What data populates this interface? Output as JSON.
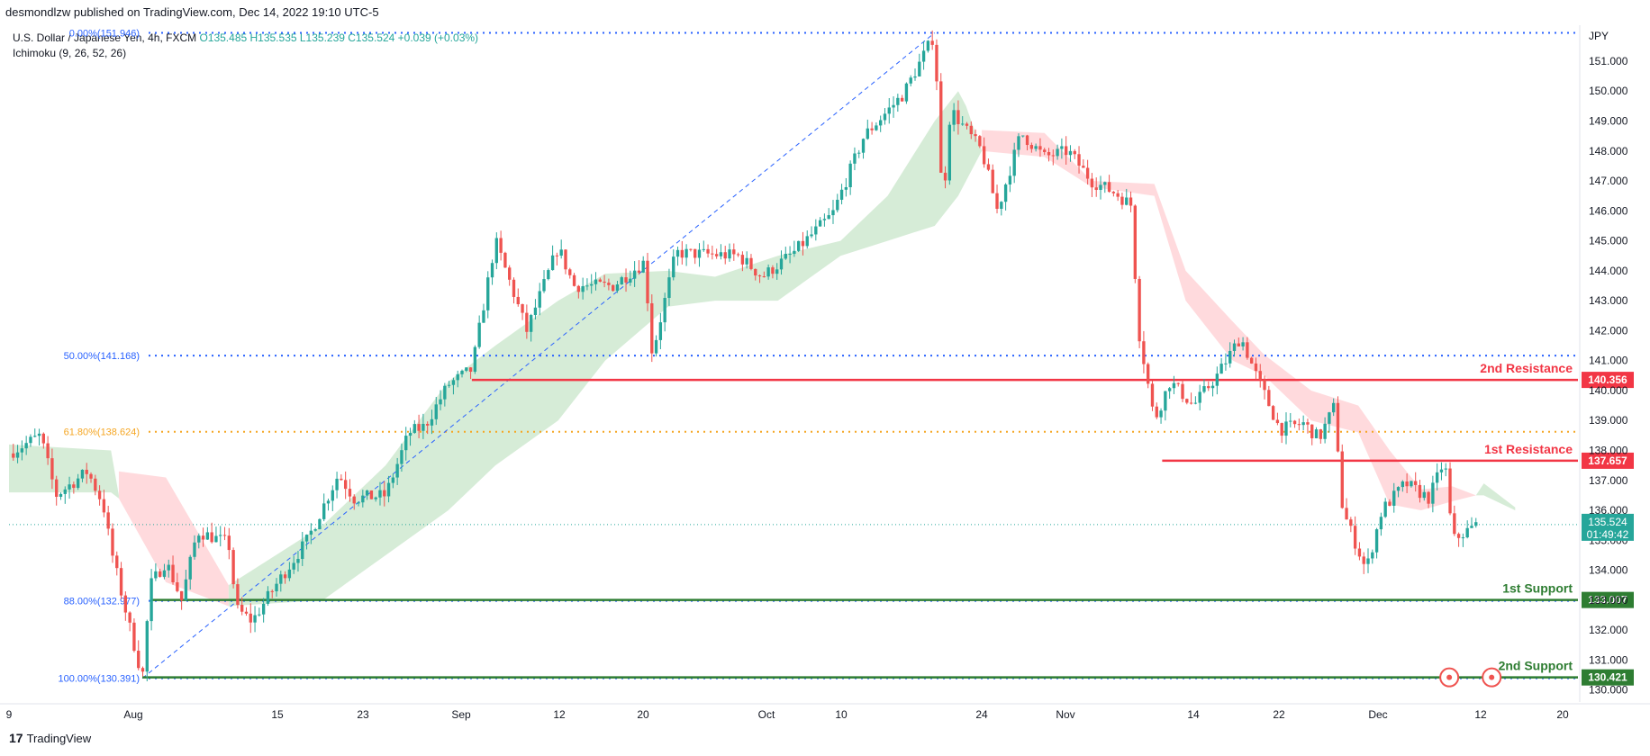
{
  "header": {
    "publish_line": "desmondlzw published on TradingView.com, Dec 14, 2022 19:10 UTC-5"
  },
  "legend": {
    "symbol": "U.S. Dollar / Japanese Yen, 4h, FXCM",
    "ohlc": "O135.485 H135.535 L135.239 C135.524 +0.039 (+0.03%)",
    "indicator": "Ichimoku (9, 26, 52, 26)"
  },
  "footer": {
    "brand": "TradingView",
    "logo_glyph": "17"
  },
  "colors": {
    "up": "#26a69a",
    "down": "#ef5350",
    "resistance": "#f23645",
    "support": "#2e7d32",
    "fib_blue": "#2962ff",
    "fib_orange": "#f5a623",
    "cloud_green": "#c8e6c9",
    "cloud_red": "#ffcdd2"
  },
  "chart_data": {
    "type": "candlestick",
    "instrument": "USDJPY",
    "currency_label": "JPY",
    "timeframe": "4h",
    "ylim": [
      129.6,
      152.2
    ],
    "y_ticks": [
      "151.000",
      "150.000",
      "149.000",
      "148.000",
      "147.000",
      "146.000",
      "145.000",
      "144.000",
      "143.000",
      "142.000",
      "141.000",
      "140.000",
      "139.000",
      "138.000",
      "137.000",
      "136.000",
      "135.000",
      "134.000",
      "133.000",
      "132.000",
      "131.000",
      "130.000"
    ],
    "x_ticks": [
      "9",
      "Aug",
      "15",
      "23",
      "Sep",
      "12",
      "20",
      "Oct",
      "10",
      "24",
      "Nov",
      "14",
      "22",
      "Dec",
      "12",
      "20"
    ],
    "price_path": [
      [
        0,
        137.9
      ],
      [
        0.02,
        138.5
      ],
      [
        0.03,
        136.5
      ],
      [
        0.05,
        137.3
      ],
      [
        0.06,
        136.2
      ],
      [
        0.065,
        134.7
      ],
      [
        0.075,
        132.5
      ],
      [
        0.085,
        130.4
      ],
      [
        0.09,
        133.5
      ],
      [
        0.1,
        134.3
      ],
      [
        0.11,
        133.0
      ],
      [
        0.12,
        135.3
      ],
      [
        0.14,
        134.9
      ],
      [
        0.145,
        132.7
      ],
      [
        0.155,
        132.3
      ],
      [
        0.17,
        133.5
      ],
      [
        0.19,
        135.0
      ],
      [
        0.21,
        137.2
      ],
      [
        0.22,
        136.4
      ],
      [
        0.24,
        136.5
      ],
      [
        0.255,
        138.6
      ],
      [
        0.265,
        138.8
      ],
      [
        0.28,
        140.2
      ],
      [
        0.295,
        140.7
      ],
      [
        0.31,
        145.0
      ],
      [
        0.33,
        142.0
      ],
      [
        0.35,
        144.8
      ],
      [
        0.36,
        143.5
      ],
      [
        0.385,
        143.5
      ],
      [
        0.405,
        144.3
      ],
      [
        0.41,
        141.2
      ],
      [
        0.425,
        144.6
      ],
      [
        0.465,
        144.5
      ],
      [
        0.48,
        143.8
      ],
      [
        0.5,
        144.6
      ],
      [
        0.525,
        145.9
      ],
      [
        0.545,
        148.5
      ],
      [
        0.57,
        149.9
      ],
      [
        0.59,
        151.9
      ],
      [
        0.595,
        146.0
      ],
      [
        0.6,
        149.4
      ],
      [
        0.62,
        148.0
      ],
      [
        0.63,
        146.0
      ],
      [
        0.645,
        148.6
      ],
      [
        0.66,
        147.8
      ],
      [
        0.675,
        148.0
      ],
      [
        0.69,
        147.0
      ],
      [
        0.705,
        146.6
      ],
      [
        0.715,
        146.2
      ],
      [
        0.72,
        142.0
      ],
      [
        0.73,
        139.0
      ],
      [
        0.74,
        140.3
      ],
      [
        0.755,
        139.5
      ],
      [
        0.77,
        140.5
      ],
      [
        0.785,
        141.8
      ],
      [
        0.795,
        140.5
      ],
      [
        0.81,
        138.7
      ],
      [
        0.825,
        138.9
      ],
      [
        0.835,
        138.4
      ],
      [
        0.845,
        139.5
      ],
      [
        0.85,
        136.0
      ],
      [
        0.865,
        134.0
      ],
      [
        0.875,
        136.0
      ],
      [
        0.89,
        136.9
      ],
      [
        0.905,
        136.4
      ],
      [
        0.915,
        137.7
      ],
      [
        0.92,
        135.0
      ],
      [
        0.935,
        135.5
      ]
    ],
    "ichimoku": {
      "cloud_segments": [
        {
          "color": "green",
          "upper": [
            [
              0,
              138.2
            ],
            [
              0.065,
              138.0
            ],
            [
              0.07,
              136.5
            ]
          ],
          "lower": [
            [
              0,
              136.6
            ],
            [
              0.065,
              136.6
            ],
            [
              0.07,
              136.4
            ]
          ]
        },
        {
          "color": "red",
          "upper": [
            [
              0.07,
              137.3
            ],
            [
              0.1,
              137.1
            ],
            [
              0.14,
              133.5
            ]
          ],
          "lower": [
            [
              0.07,
              136.4
            ],
            [
              0.1,
              133.6
            ],
            [
              0.14,
              132.8
            ]
          ]
        },
        {
          "color": "green",
          "upper": [
            [
              0.14,
              133.5
            ],
            [
              0.2,
              135.5
            ],
            [
              0.24,
              137.5
            ],
            [
              0.28,
              140.3
            ],
            [
              0.31,
              141.5
            ],
            [
              0.35,
              143.0
            ],
            [
              0.38,
              143.9
            ],
            [
              0.42,
              144.0
            ],
            [
              0.45,
              143.8
            ],
            [
              0.49,
              144.5
            ],
            [
              0.53,
              145.0
            ],
            [
              0.56,
              146.5
            ],
            [
              0.59,
              149.0
            ],
            [
              0.605,
              150.0
            ],
            [
              0.61,
              149.5
            ],
            [
              0.62,
              148.0
            ]
          ],
          "lower": [
            [
              0.14,
              132.8
            ],
            [
              0.2,
              133.0
            ],
            [
              0.24,
              134.5
            ],
            [
              0.28,
              136.0
            ],
            [
              0.31,
              137.5
            ],
            [
              0.35,
              139.0
            ],
            [
              0.38,
              141.0
            ],
            [
              0.42,
              142.8
            ],
            [
              0.45,
              143.0
            ],
            [
              0.49,
              143.0
            ],
            [
              0.53,
              144.5
            ],
            [
              0.56,
              145.0
            ],
            [
              0.59,
              145.5
            ],
            [
              0.605,
              146.5
            ],
            [
              0.61,
              147.0
            ],
            [
              0.62,
              148.0
            ]
          ]
        },
        {
          "color": "red",
          "upper": [
            [
              0.62,
              148.7
            ],
            [
              0.66,
              148.6
            ],
            [
              0.69,
              147.0
            ],
            [
              0.73,
              146.9
            ],
            [
              0.75,
              144.0
            ],
            [
              0.78,
              142.3
            ],
            [
              0.8,
              141.2
            ],
            [
              0.83,
              140.0
            ],
            [
              0.86,
              139.5
            ],
            [
              0.88,
              138.0
            ],
            [
              0.9,
              136.7
            ],
            [
              0.92,
              136.8
            ],
            [
              0.935,
              136.5
            ]
          ],
          "lower": [
            [
              0.62,
              148.0
            ],
            [
              0.66,
              147.8
            ],
            [
              0.69,
              146.8
            ],
            [
              0.73,
              146.5
            ],
            [
              0.75,
              143.0
            ],
            [
              0.78,
              141.0
            ],
            [
              0.8,
              140.5
            ],
            [
              0.83,
              139.0
            ],
            [
              0.86,
              138.6
            ],
            [
              0.88,
              136.2
            ],
            [
              0.9,
              136.0
            ],
            [
              0.92,
              136.3
            ],
            [
              0.935,
              136.5
            ]
          ]
        },
        {
          "color": "green",
          "upper": [
            [
              0.935,
              136.5
            ],
            [
              0.94,
              136.9
            ],
            [
              0.96,
              136.1
            ]
          ],
          "lower": [
            [
              0.935,
              136.5
            ],
            [
              0.94,
              136.5
            ],
            [
              0.96,
              136.0
            ]
          ]
        }
      ]
    },
    "fibonacci": {
      "levels": [
        {
          "label": "0.00%(151.946)",
          "price": 151.946,
          "style": "blue"
        },
        {
          "label": "50.00%(141.168)",
          "price": 141.168,
          "style": "blue"
        },
        {
          "label": "61.80%(138.624)",
          "price": 138.624,
          "style": "orange"
        },
        {
          "label": "88.00%(132.977)",
          "price": 132.977,
          "style": "blue"
        },
        {
          "label": "100.00%(130.391)",
          "price": 130.391,
          "style": "blue"
        }
      ],
      "trend_line": {
        "from": [
          0.085,
          130.391
        ],
        "to": [
          0.59,
          151.946
        ]
      }
    },
    "levels": [
      {
        "name": "2nd Resistance",
        "price": 140.356,
        "price_label": "140.356",
        "type": "resistance",
        "from": 0.295
      },
      {
        "name": "1st Resistance",
        "price": 137.657,
        "price_label": "137.657",
        "type": "resistance",
        "from": 0.735
      },
      {
        "name": "1st Support",
        "price": 133.007,
        "price_label": "133.007",
        "type": "support",
        "from": 0.09
      },
      {
        "name": "2nd Support",
        "price": 130.421,
        "price_label": "130.421",
        "type": "support",
        "from": 0.085
      }
    ],
    "current_price": {
      "price": 135.524,
      "price_label": "135.524",
      "countdown": "01:49:42"
    },
    "event_markers": [
      0.918,
      0.945
    ]
  }
}
